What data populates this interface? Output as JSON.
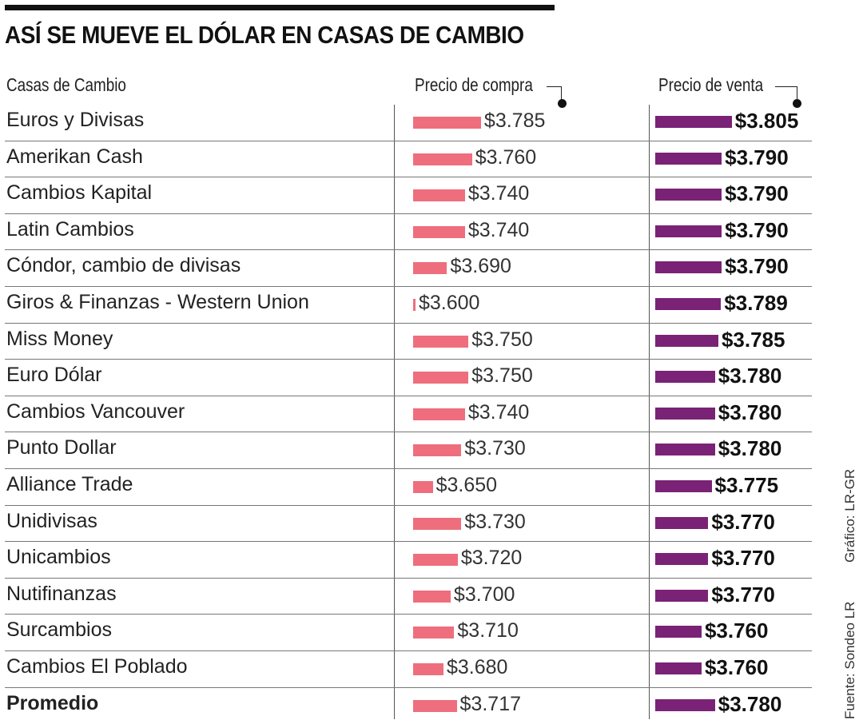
{
  "title": "ASÍ SE MUEVE EL DÓLAR EN CASAS DE CAMBIO",
  "headers": {
    "name": "Casas de Cambio",
    "buy": "Precio de compra",
    "sell": "Precio de venta"
  },
  "credits": {
    "graphic": "Gráfico: LR-GR",
    "source": "Fuente: Sondeo LR"
  },
  "colors": {
    "buy": "#ee6e7d",
    "sell": "#7a2276"
  },
  "chart_data": {
    "type": "bar",
    "title": "ASÍ SE MUEVE EL DÓLAR EN CASAS DE CAMBIO",
    "categories": [
      "Euros y Divisas",
      "Amerikan Cash",
      "Cambios Kapital",
      "Latin Cambios",
      "Cóndor, cambio de divisas",
      "Giros & Finanzas - Western Union",
      "Miss Money",
      "Euro Dólar",
      "Cambios Vancouver",
      "Punto Dollar",
      "Alliance Trade",
      "Unidivisas",
      "Unicambios",
      "Nutifinanzas",
      "Surcambios",
      "Cambios El Poblado",
      "Promedio"
    ],
    "series": [
      {
        "name": "Precio de compra",
        "values": [
          3785,
          3760,
          3740,
          3740,
          3690,
          3600,
          3750,
          3750,
          3740,
          3730,
          3650,
          3730,
          3720,
          3700,
          3710,
          3680,
          3717
        ],
        "labels": [
          "$3.785",
          "$3.760",
          "$3.740",
          "$3.740",
          "$3.690",
          "$3.600",
          "$3.750",
          "$3.750",
          "$3.740",
          "$3.730",
          "$3.650",
          "$3.730",
          "$3.720",
          "$3.700",
          "$3.710",
          "$3.680",
          "$3.717"
        ]
      },
      {
        "name": "Precio de venta",
        "values": [
          3805,
          3790,
          3790,
          3790,
          3790,
          3789,
          3785,
          3780,
          3780,
          3780,
          3775,
          3770,
          3770,
          3770,
          3760,
          3760,
          3780
        ],
        "labels": [
          "$3.805",
          "$3.790",
          "$3.790",
          "$3.790",
          "$3.790",
          "$3.789",
          "$3.785",
          "$3.780",
          "$3.780",
          "$3.780",
          "$3.775",
          "$3.770",
          "$3.770",
          "$3.770",
          "$3.760",
          "$3.760",
          "$3.780"
        ]
      }
    ],
    "bold_categories": [
      "Promedio"
    ]
  }
}
